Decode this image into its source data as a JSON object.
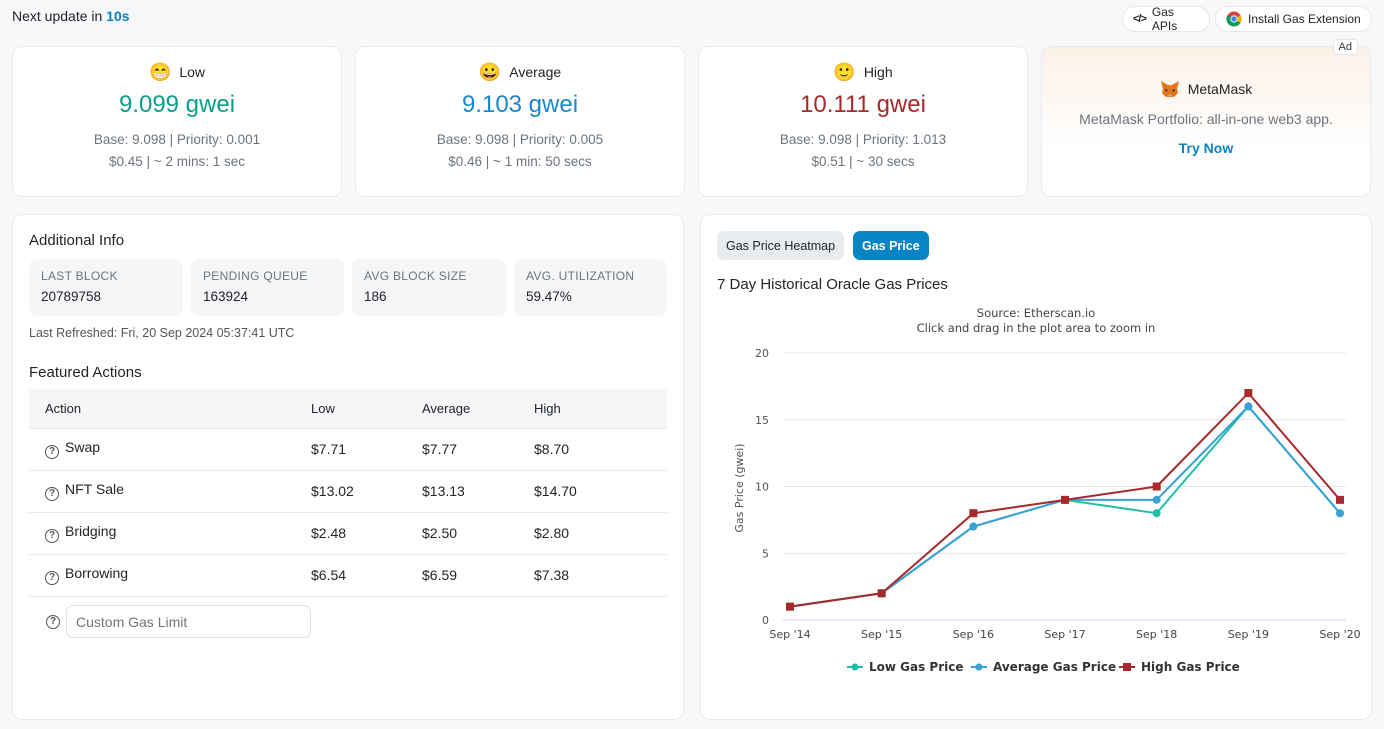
{
  "topbar": {
    "prefix": "Next update in ",
    "countdown": "10s"
  },
  "header_buttons": {
    "apis_icon": "code-icon",
    "apis_label": "Gas APIs",
    "extension_icon": "chrome-icon",
    "extension_label": "Install Gas Extension"
  },
  "gas_cards": [
    {
      "level": "Low",
      "emoji": "😁",
      "value": "9.099 gwei",
      "color": "#0d9e8a",
      "base_priority": "Base: 9.098 | Priority: 0.001",
      "cost_time": "$0.45 | ~ 2 mins: 1 sec"
    },
    {
      "level": "Average",
      "emoji": "😀",
      "value": "9.103 gwei",
      "color": "#1a88c9",
      "base_priority": "Base: 9.098 | Priority: 0.005",
      "cost_time": "$0.46 | ~ 1 min: 50 secs"
    },
    {
      "level": "High",
      "emoji": "🙂",
      "value": "10.111 gwei",
      "color": "#a8292b",
      "base_priority": "Base: 9.098 | Priority: 1.013",
      "cost_time": "$0.51 | ~ 30 secs"
    }
  ],
  "ad": {
    "badge": "Ad",
    "logo_icon": "metamask-fox-icon",
    "title": "MetaMask",
    "description": "MetaMask Portfolio: all-in-one web3 app.",
    "cta": "Try Now"
  },
  "additional_info": {
    "title": "Additional Info",
    "stats": [
      {
        "label": "LAST BLOCK",
        "value": "20789758"
      },
      {
        "label": "PENDING QUEUE",
        "value": "163924"
      },
      {
        "label": "AVG BLOCK SIZE",
        "value": "186"
      },
      {
        "label": "AVG. UTILIZATION",
        "value": "59.47%"
      }
    ],
    "last_refreshed": "Last Refreshed: Fri, 20 Sep 2024 05:37:41 UTC"
  },
  "featured_actions": {
    "title": "Featured Actions",
    "columns": [
      "Action",
      "Low",
      "Average",
      "High"
    ],
    "rows": [
      {
        "action": "Swap",
        "low": "$7.71",
        "average": "$7.77",
        "high": "$8.70"
      },
      {
        "action": "NFT Sale",
        "low": "$13.02",
        "average": "$13.13",
        "high": "$14.70"
      },
      {
        "action": "Bridging",
        "low": "$2.48",
        "average": "$2.50",
        "high": "$2.80"
      },
      {
        "action": "Borrowing",
        "low": "$6.54",
        "average": "$6.59",
        "high": "$7.38"
      }
    ],
    "custom_placeholder": "Custom Gas Limit"
  },
  "chart_panel": {
    "tabs": [
      "Gas Price Heatmap",
      "Gas Price"
    ],
    "active_tab": "Gas Price",
    "heading": "7 Day Historical Oracle Gas Prices"
  },
  "chart_data": {
    "type": "line",
    "title": "Source: Etherscan.io",
    "subtitle": "Click and drag in the plot area to zoom in",
    "xlabel": "",
    "ylabel": "Gas Price (gwei)",
    "categories": [
      "Sep '14",
      "Sep '15",
      "Sep '16",
      "Sep '17",
      "Sep '18",
      "Sep '19",
      "Sep '20"
    ],
    "ylim": [
      0,
      20
    ],
    "yticks": [
      0,
      5,
      10,
      15,
      20
    ],
    "grid": true,
    "legend_position": "bottom",
    "series": [
      {
        "name": "Low Gas Price",
        "color": "#1fbfa6",
        "marker": "circle",
        "values": [
          1,
          2,
          7,
          9,
          8,
          16,
          8
        ]
      },
      {
        "name": "Average Gas Price",
        "color": "#3ba0d6",
        "marker": "circle",
        "values": [
          1,
          2,
          7,
          9,
          9,
          16,
          8
        ]
      },
      {
        "name": "High Gas Price",
        "color": "#a8292b",
        "marker": "square",
        "values": [
          1,
          2,
          8,
          9,
          10,
          17,
          9
        ]
      }
    ]
  }
}
